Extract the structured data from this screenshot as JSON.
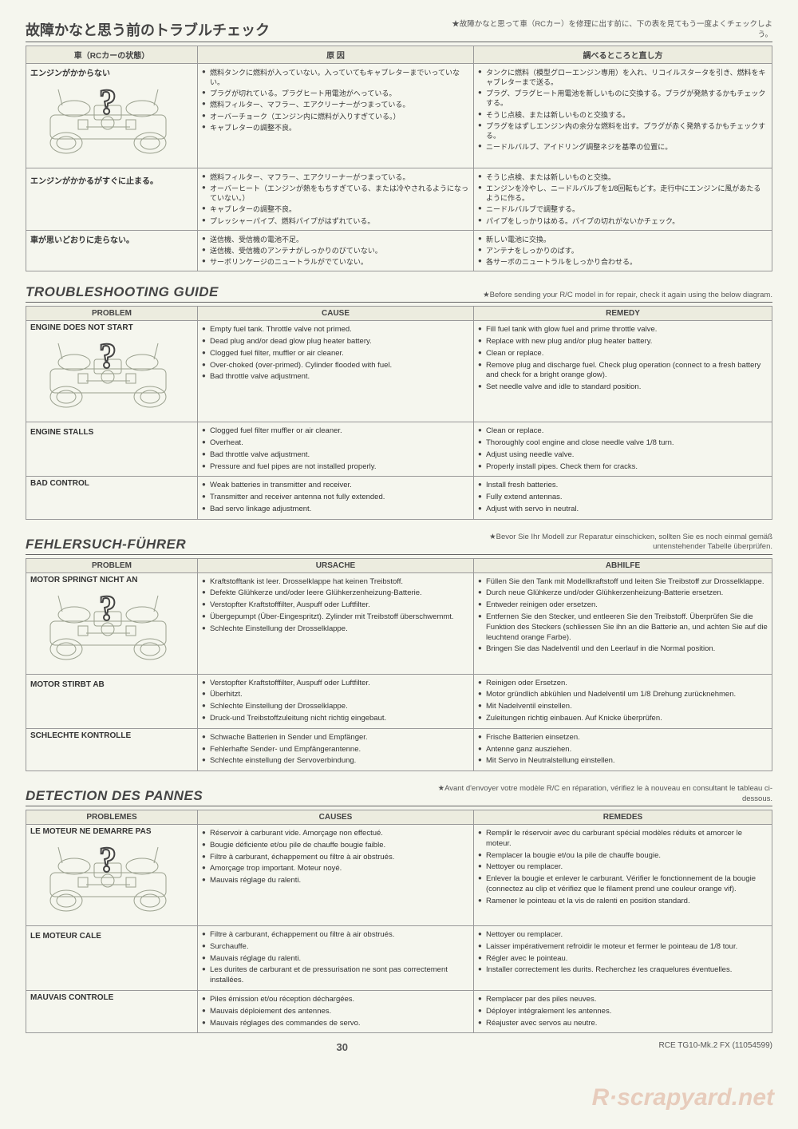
{
  "colors": {
    "page_bg": "#f5f6ee",
    "header_bg": "#ececdf",
    "border": "#999999",
    "text": "#333333",
    "chassis_stroke": "#9aa08e",
    "question_mark": "#444444"
  },
  "footer": {
    "page_number": "30",
    "doc_id": "RCE TG10-Mk.2 FX (11054599)"
  },
  "sections": {
    "jp": {
      "title": "故障かなと思う前のトラブルチェック",
      "note": "★故障かなと思って車（RCカー）を修理に出す前に、下の表を見てもう一度よくチェックしよう。",
      "headers": [
        "車（RCカーの状態）",
        "原 因",
        "調べるところと直し方"
      ],
      "rows": [
        {
          "problem_top": "エンジンがかからない",
          "problem_bottom": "",
          "show_chassis": true,
          "causes": [
            "燃料タンクに燃料が入っていない。入っていてもキャブレターまでいっていない。",
            "プラグが切れている。プラグヒート用電池がへっている。",
            "燃料フィルター、マフラー、エアクリーナーがつまっている。",
            "オーバーチョーク（エンジン内に燃料が入りすぎている。）",
            "キャブレターの調整不良。"
          ],
          "remedies": [
            "タンクに燃料（模型グローエンジン専用）を入れ、リコイルスタータを引き、燃料をキャブレターまで送る。",
            "プラグ、プラグヒート用電池を新しいものに交換する。プラグが発熱するかもチェックする。",
            "そうじ点検、または新しいものと交換する。",
            "プラグをはずしエンジン内の余分な燃料を出す。プラグが赤く発熱するかもチェックする。",
            "ニードルバルブ、アイドリング調整ネジを基準の位置に。"
          ]
        },
        {
          "problem_top": "",
          "problem_bottom": "エンジンがかかるがすぐに止まる。",
          "show_chassis": false,
          "causes": [
            "燃料フィルター、マフラー、エアクリーナーがつまっている。",
            "オーバーヒート（エンジンが熱をもちすぎている、または冷やされるようになっていない。）",
            "キャブレターの調整不良。",
            "プレッシャーパイプ、燃料パイプがはずれている。"
          ],
          "remedies": [
            "そうじ点検、または新しいものと交換。",
            "エンジンを冷やし、ニードルバルブを1/8回転もどす。走行中にエンジンに風があたるように作る。",
            "ニードルバルブで調整する。",
            "パイプをしっかりはめる。パイプの切れがないかチェック。"
          ]
        },
        {
          "problem_top": "車が思いどおりに走らない。",
          "problem_bottom": "",
          "show_chassis": false,
          "causes": [
            "送信機、受信機の電池不足。",
            "送信機、受信機のアンテナがしっかりのびていない。",
            "サーボリンケージのニュートラルがでていない。"
          ],
          "remedies": [
            "新しい電池に交換。",
            "アンテナをしっかりのばす。",
            "各サーボのニュートラルをしっかり合わせる。"
          ]
        }
      ]
    },
    "en": {
      "title": "TROUBLESHOOTING GUIDE",
      "note": "★Before sending your R/C model in for repair, check it again using the below diagram.",
      "headers": [
        "PROBLEM",
        "CAUSE",
        "REMEDY"
      ],
      "rows": [
        {
          "problem_top": "ENGINE DOES NOT START",
          "problem_bottom": "",
          "show_chassis": true,
          "causes": [
            "Empty fuel tank. Throttle valve not primed.",
            "Dead plug and/or dead glow plug heater battery.",
            "Clogged fuel filter, muffler or air cleaner.",
            "Over-choked (over-primed). Cylinder flooded with fuel.",
            "Bad throttle valve adjustment."
          ],
          "remedies": [
            "Fill fuel tank with glow fuel and prime throttle valve.",
            "Replace with new plug and/or plug heater battery.",
            "Clean or replace.",
            "Remove plug and discharge fuel. Check plug operation (connect to a fresh battery and check for a bright orange glow).",
            "Set needle valve and idle to standard position."
          ]
        },
        {
          "problem_top": "",
          "problem_bottom": "ENGINE STALLS",
          "show_chassis": false,
          "causes": [
            "Clogged fuel filter muffler or air cleaner.",
            "Overheat.",
            "Bad throttle valve adjustment.",
            "Pressure and fuel pipes are not installed properly."
          ],
          "remedies": [
            "Clean or replace.",
            "Thoroughly cool engine and close needle valve 1/8 turn.",
            "Adjust using needle valve.",
            "Properly install pipes. Check them for cracks."
          ]
        },
        {
          "problem_top": "BAD CONTROL",
          "problem_bottom": "",
          "show_chassis": false,
          "causes": [
            "Weak batteries in transmitter and receiver.",
            "Transmitter and receiver antenna not fully extended.",
            "Bad servo linkage adjustment."
          ],
          "remedies": [
            "Install fresh batteries.",
            "Fully extend antennas.",
            "Adjust with servo in neutral."
          ]
        }
      ]
    },
    "de": {
      "title": "FEHLERSUCH-FÜHRER",
      "note": "★Bevor Sie Ihr Modell zur Reparatur einschicken, sollten Sie es noch einmal gemäß untenstehender Tabelle überprüfen.",
      "headers": [
        "PROBLEM",
        "URSACHE",
        "ABHILFE"
      ],
      "rows": [
        {
          "problem_top": "MOTOR SPRINGT NICHT AN",
          "problem_bottom": "",
          "show_chassis": true,
          "causes": [
            "Kraftstofftank ist leer. Drosselklappe hat keinen Treibstoff.",
            "Defekte Glühkerze und/oder leere Glühkerzenheizung-Batterie.",
            "Verstopfter Kraftstofffilter, Auspuff oder Luftfilter.",
            "Übergepumpt (Über-Eingespritzt). Zylinder mit Treibstoff überschwemmt.",
            "Schlechte Einstellung der Drosselklappe."
          ],
          "remedies": [
            "Füllen Sie den Tank mit Modellkraftstoff und leiten Sie Treibstoff zur Drosselklappe.",
            "Durch neue Glühkerze und/oder Glühkerzenheizung-Batterie ersetzen.",
            "Entweder reinigen oder ersetzen.",
            "Entfernen Sie den Stecker, und entleeren Sie den Treibstoff. Überprüfen Sie die Funktion des Steckers (schliessen Sie ihn an die Batterie an, und achten Sie auf die leuchtend orange Farbe).",
            "Bringen Sie das Nadelventil und den Leerlauf in die Normal position."
          ]
        },
        {
          "problem_top": "",
          "problem_bottom": "MOTOR STIRBT AB",
          "show_chassis": false,
          "causes": [
            "Verstopfter Kraftstofffilter, Auspuff oder Luftfilter.",
            "Überhitzt.",
            "Schlechte Einstellung der Drosselklappe.",
            "Druck-und Treibstoffzuleitung nicht richtig eingebaut."
          ],
          "remedies": [
            "Reinigen oder Ersetzen.",
            "Motor gründlich abkühlen und Nadelventil um 1/8 Drehung zurücknehmen.",
            "Mit Nadelventil einstellen.",
            "Zuleitungen richtig einbauen. Auf Knicke überprüfen."
          ]
        },
        {
          "problem_top": "SCHLECHTE KONTROLLE",
          "problem_bottom": "",
          "show_chassis": false,
          "causes": [
            "Schwache Batterien in Sender und Empfänger.",
            "Fehlerhafte Sender- und Empfängerantenne.",
            "Schlechte einstellung der Servoverbindung."
          ],
          "remedies": [
            "Frische Batterien einsetzen.",
            "Antenne ganz ausziehen.",
            "Mit Servo in Neutralstellung einstellen."
          ]
        }
      ]
    },
    "fr": {
      "title": "DETECTION DES PANNES",
      "note": "★Avant d'envoyer votre modèle R/C en réparation, vérifiez le à nouveau en consultant le tableau ci-dessous.",
      "headers": [
        "PROBLEMES",
        "CAUSES",
        "REMEDES"
      ],
      "rows": [
        {
          "problem_top": "LE MOTEUR NE DEMARRE PAS",
          "problem_bottom": "",
          "show_chassis": true,
          "causes": [
            "Réservoir à carburant vide. Amorçage non effectué.",
            "Bougie déficiente et/ou pile de chauffe bougie faible.",
            "Filtre à carburant, échappement ou filtre à air obstrués.",
            "Amorçage trop important. Moteur noyé.",
            "Mauvais réglage du ralenti."
          ],
          "remedies": [
            "Remplir le réservoir avec du carburant spécial modèles réduits et amorcer le moteur.",
            "Remplacer la bougie et/ou la pile de chauffe bougie.",
            "Nettoyer ou remplacer.",
            "Enlever la bougie et enlever le carburant. Vérifier le fonctionnement de la bougie (connectez au clip et vérifiez que le filament prend une couleur orange vif).",
            "Ramener le pointeau et la vis de ralenti en position standard."
          ]
        },
        {
          "problem_top": "",
          "problem_bottom": "LE MOTEUR CALE",
          "show_chassis": false,
          "causes": [
            "Filtre à carburant, échappement ou filtre à air obstrués.",
            "Surchauffe.",
            "Mauvais réglage du ralenti.",
            "Les durites de carburant et de pressurisation ne sont pas correctement installées."
          ],
          "remedies": [
            "Nettoyer ou remplacer.",
            "Laisser impérativement refroidir le moteur et fermer le pointeau de 1/8 tour.",
            "Régler avec le pointeau.",
            "Installer correctement les durits. Recherchez les craquelures éventuelles."
          ]
        },
        {
          "problem_top": "MAUVAIS CONTROLE",
          "problem_bottom": "",
          "show_chassis": false,
          "causes": [
            "Piles émission et/ou réception déchargées.",
            "Mauvais déploiement des antennes.",
            "Mauvais réglages des commandes de servo."
          ],
          "remedies": [
            "Remplacer par des piles neuves.",
            "Déployer intégralement les antennes.",
            "Réajuster avec servos au neutre."
          ]
        }
      ]
    }
  }
}
